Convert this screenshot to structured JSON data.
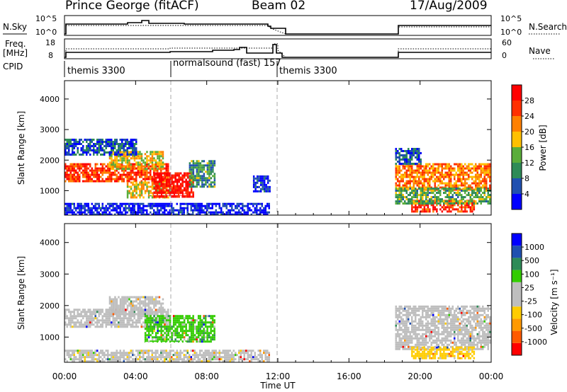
{
  "header": {
    "title": "Prince George (fitACF)",
    "beam": "Beam 02",
    "date": "17/Aug/2009"
  },
  "nsky_panel": {
    "left_label": "N.Sky",
    "right_label": "N.Search",
    "left_ticks": [
      "10^5",
      "10^0"
    ],
    "right_ticks": [
      "10^5",
      "10^0"
    ]
  },
  "freq_panel": {
    "left_label_line1": "Freq.",
    "left_label_line2": "[MHz]",
    "right_label": "Nave",
    "left_ticks": [
      "18",
      "8"
    ],
    "right_ticks": [
      "60",
      "0"
    ]
  },
  "cpid_panel": {
    "label": "CPID",
    "segments": [
      {
        "label": "themis 3300",
        "start_hour": 0
      },
      {
        "label": "normalsound (fast) 157",
        "start_hour": 6
      },
      {
        "label": "themis 3300",
        "start_hour": 12
      }
    ]
  },
  "x_axis": {
    "label": "Time UT",
    "ticks": [
      "00:00",
      "04:00",
      "08:00",
      "12:00",
      "16:00",
      "20:00",
      "00:00"
    ]
  },
  "colors": {
    "power_scale": [
      "#0000ff",
      "#2050b0",
      "#2e8b57",
      "#5aad3a",
      "#ffc000",
      "#ff8000",
      "#ff3000",
      "#ff0000"
    ],
    "velocity_scale": [
      "#ff0000",
      "#ff5a00",
      "#ff9900",
      "#ffcc00",
      "#bebebe",
      "#bebebe",
      "#33cc00",
      "#2e8b57",
      "#2050b0",
      "#0000ff"
    ]
  },
  "chart_data": [
    {
      "type": "heatmap",
      "name": "power",
      "ylabel": "Slant Range [km]",
      "xlabel": "",
      "xlim": [
        0,
        24
      ],
      "ylim": [
        200,
        4600
      ],
      "yticks": [
        "1000",
        "2000",
        "3000",
        "4000"
      ],
      "colorbar_label": "Power [dB]",
      "colorbar_ticks": [
        "28",
        "24",
        "20",
        "16",
        "12",
        "8",
        "4"
      ],
      "regions": [
        {
          "t": [
            0.0,
            5.8
          ],
          "r": [
            1300,
            1900
          ],
          "level": 0.82
        },
        {
          "t": [
            2.5,
            5.5
          ],
          "r": [
            1700,
            2300
          ],
          "level": 0.55
        },
        {
          "t": [
            0.0,
            4.0
          ],
          "r": [
            2200,
            2700
          ],
          "level": 0.18
        },
        {
          "t": [
            3.5,
            6.0
          ],
          "r": [
            800,
            1300
          ],
          "level": 0.55
        },
        {
          "t": [
            5.0,
            7.2
          ],
          "r": [
            800,
            1600
          ],
          "level": 0.95
        },
        {
          "t": [
            7.0,
            8.4
          ],
          "r": [
            1100,
            2000
          ],
          "level": 0.35
        },
        {
          "t": [
            0.0,
            11.5
          ],
          "r": [
            250,
            600
          ],
          "level": 0.08
        },
        {
          "t": [
            10.6,
            11.5
          ],
          "r": [
            1000,
            1500
          ],
          "level": 0.1
        },
        {
          "t": [
            18.6,
            24.0
          ],
          "r": [
            1000,
            1900
          ],
          "level": 0.7
        },
        {
          "t": [
            19.5,
            23.0
          ],
          "r": [
            300,
            700
          ],
          "level": 0.85
        },
        {
          "t": [
            18.6,
            24.0
          ],
          "r": [
            600,
            1100
          ],
          "level": 0.4
        },
        {
          "t": [
            18.6,
            20.0
          ],
          "r": [
            1900,
            2400
          ],
          "level": 0.2
        }
      ]
    },
    {
      "type": "heatmap",
      "name": "velocity",
      "ylabel": "Slant Range [km]",
      "xlabel": "Time UT",
      "xlim": [
        0,
        24
      ],
      "ylim": [
        200,
        4600
      ],
      "yticks": [
        "1000",
        "2000",
        "3000",
        "4000"
      ],
      "colorbar_label": "Velocity [m s⁻¹]",
      "colorbar_ticks": [
        "1000",
        "500",
        "100",
        "25",
        "-25",
        "-100",
        "-500",
        "-1000"
      ],
      "regions": [
        {
          "t": [
            0.0,
            5.8
          ],
          "r": [
            1300,
            1900
          ],
          "level": 0.5
        },
        {
          "t": [
            2.5,
            5.5
          ],
          "r": [
            1700,
            2300
          ],
          "level": 0.5
        },
        {
          "t": [
            4.5,
            8.4
          ],
          "r": [
            850,
            1700
          ],
          "level": 0.65
        },
        {
          "t": [
            0.0,
            11.5
          ],
          "r": [
            250,
            600
          ],
          "level": 0.45
        },
        {
          "t": [
            18.6,
            24.0
          ],
          "r": [
            600,
            2000
          ],
          "level": 0.5
        },
        {
          "t": [
            19.5,
            23.0
          ],
          "r": [
            300,
            700
          ],
          "level": 0.35
        }
      ]
    }
  ]
}
